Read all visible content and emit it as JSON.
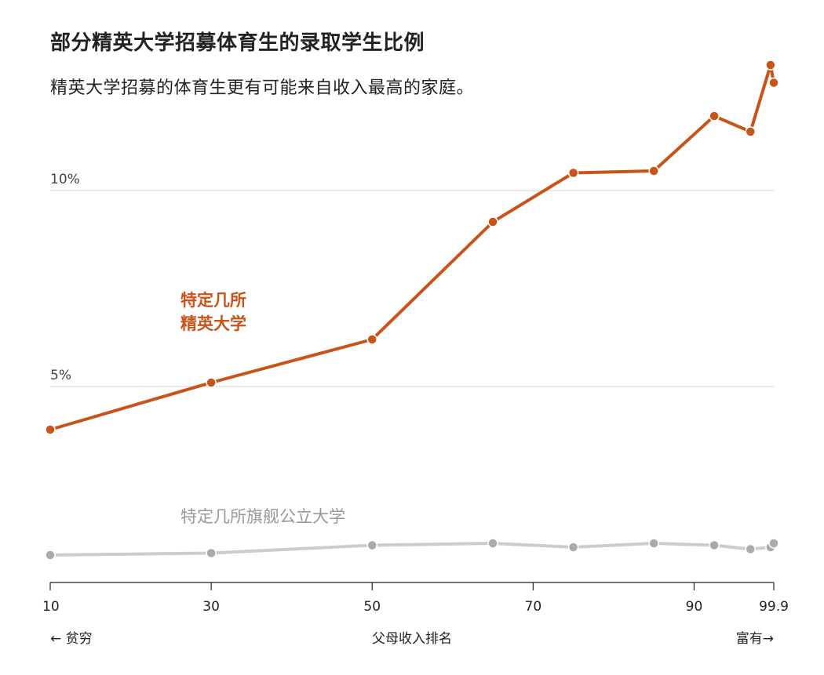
{
  "chart_data": {
    "type": "line",
    "title": "部分精英大学招募体育生的录取学生比例",
    "subtitle": "精英大学招募的体育生更有可能来自收入最高的家庭。",
    "xlabel": "父母收入排名",
    "x_left_note": "← 贫穷",
    "x_right_note": "富有→",
    "x_ticks": [
      "10",
      "30",
      "50",
      "70",
      "90",
      "99.9"
    ],
    "y_ticks": [
      "5%",
      "10%"
    ],
    "xlim": [
      10,
      99.9
    ],
    "ylim": [
      0,
      13.5
    ],
    "grid": true,
    "series": [
      {
        "name": "特定几所精英大学",
        "name_lines": [
          "特定几所",
          "精英大学"
        ],
        "color": "#c9541a",
        "x": [
          10,
          30,
          50,
          65,
          75,
          85,
          92.5,
          97,
          99.5,
          99.9
        ],
        "values": [
          3.9,
          5.1,
          6.2,
          9.2,
          10.45,
          10.5,
          11.9,
          11.5,
          13.2,
          12.75
        ]
      },
      {
        "name": "特定几所旗舰公立大学",
        "color": "#cccccc",
        "x": [
          10,
          30,
          50,
          65,
          75,
          85,
          92.5,
          97,
          99.5,
          99.9
        ],
        "values": [
          0.7,
          0.75,
          0.95,
          1.0,
          0.9,
          1.0,
          0.95,
          0.85,
          0.9,
          1.0
        ]
      }
    ]
  }
}
